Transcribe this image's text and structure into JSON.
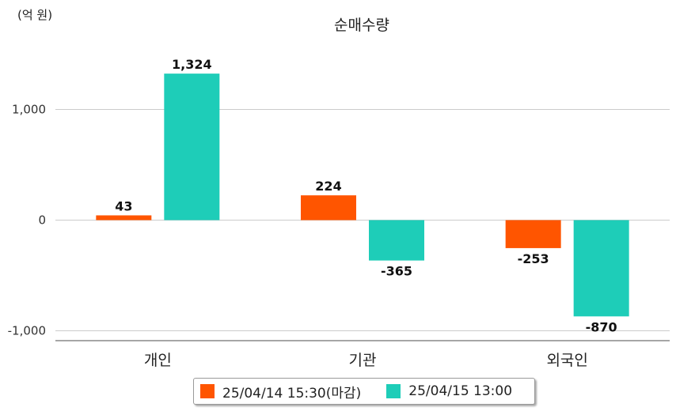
{
  "unit_label": "(억 원)",
  "chart_data": {
    "type": "bar",
    "title": "순매수량",
    "categories": [
      "개인",
      "기관",
      "외국인"
    ],
    "series": [
      {
        "name": "25/04/14 15:30(마감)",
        "color": "#ff5500",
        "values": [
          43,
          224,
          -253
        ],
        "labels": [
          "43",
          "224",
          "-253"
        ]
      },
      {
        "name": "25/04/15 13:00",
        "color": "#1ecdb8",
        "values": [
          1324,
          -365,
          -870
        ],
        "labels": [
          "1,324",
          "-365",
          "-870"
        ]
      }
    ],
    "yticks": [
      -1000,
      0,
      1000
    ],
    "ytick_labels": [
      "-1,000",
      "0",
      "1,000"
    ],
    "ylim": [
      -1080,
      1470
    ],
    "grid": true,
    "legend_position": "bottom"
  }
}
